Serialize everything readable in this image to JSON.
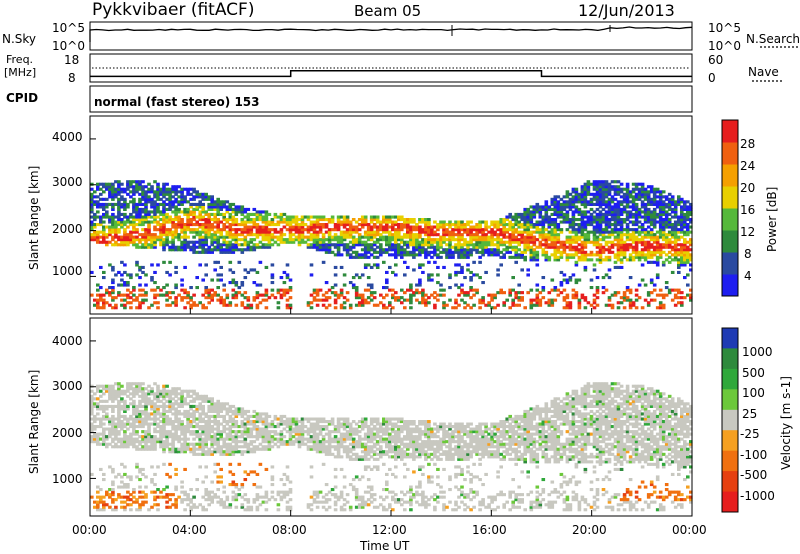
{
  "header": {
    "title": "Pykkvibaer (fitACF)",
    "beam": "Beam 05",
    "date": "12/Jun/2013"
  },
  "noise_panel": {
    "left_label": "N.Sky",
    "right_label": "N.Search",
    "left_ticks": [
      "10^5",
      "10^0"
    ],
    "right_ticks": [
      "10^5",
      "10^0"
    ]
  },
  "freq_panel": {
    "left_label_1": "Freq.",
    "left_label_2": "[MHz]",
    "right_label": "Nave",
    "left_ticks": [
      "18",
      "8"
    ],
    "right_ticks": [
      "60",
      "0"
    ]
  },
  "cpid": {
    "label": "CPID",
    "value": "normal (fast stereo) 153"
  },
  "x_axis": {
    "label": "Time UT",
    "ticks": [
      "00:00",
      "04:00",
      "08:00",
      "12:00",
      "16:00",
      "20:00",
      "00:00"
    ]
  },
  "power_panel": {
    "ylabel": "Slant Range [km]",
    "yticks": [
      "1000",
      "2000",
      "3000",
      "4000"
    ],
    "colorbar_label": "Power [dB]",
    "colorbar_ticks": [
      "4",
      "8",
      "12",
      "16",
      "20",
      "24",
      "28"
    ],
    "colors": [
      "#1e1ef0",
      "#2a4aa0",
      "#2e8a3c",
      "#55b83a",
      "#e8d000",
      "#f5a000",
      "#f06010",
      "#e61e1e"
    ]
  },
  "velocity_panel": {
    "ylabel": "Slant Range [km]",
    "yticks": [
      "1000",
      "2000",
      "3000",
      "4000"
    ],
    "colorbar_label": "Velocity [m s-1]",
    "colorbar_ticks": [
      "1000",
      "500",
      "100",
      "25",
      "-25",
      "-100",
      "-500",
      "-1000"
    ],
    "colors": [
      "#1e3ab4",
      "#2e8a3c",
      "#2fa83a",
      "#6cc83a",
      "#c8c8c0",
      "#f5a020",
      "#f07010",
      "#e64010",
      "#e61e1e"
    ]
  },
  "chart_data": {
    "type": "heatmap",
    "x_unit": "hours UT",
    "x_range": [
      0,
      24
    ],
    "y_range_km": [
      180,
      4500
    ],
    "frequency_mhz": [
      {
        "from_hour": 0,
        "to_hour": 8,
        "value": 10
      },
      {
        "from_hour": 8,
        "to_hour": 18,
        "value": 12
      },
      {
        "from_hour": 18,
        "to_hour": 24,
        "value": 10
      }
    ],
    "power_bands": [
      {
        "t": 0,
        "lower_km": 1700,
        "upper_km": 3000,
        "core_km": 1750
      },
      {
        "t": 2,
        "lower_km": 1600,
        "upper_km": 3100,
        "core_km": 1900
      },
      {
        "t": 4,
        "lower_km": 1500,
        "upper_km": 2900,
        "core_km": 2200
      },
      {
        "t": 6,
        "lower_km": 1500,
        "upper_km": 2500,
        "core_km": 2000
      },
      {
        "t": 8,
        "lower_km": 1700,
        "upper_km": 2300,
        "core_km": 2000
      },
      {
        "t": 10,
        "lower_km": 1400,
        "upper_km": 2300,
        "core_km": 2050
      },
      {
        "t": 12,
        "lower_km": 1350,
        "upper_km": 2300,
        "core_km": 2050
      },
      {
        "t": 14,
        "lower_km": 1350,
        "upper_km": 2200,
        "core_km": 1950
      },
      {
        "t": 16,
        "lower_km": 1400,
        "upper_km": 2200,
        "core_km": 1950
      },
      {
        "t": 18,
        "lower_km": 1300,
        "upper_km": 2600,
        "core_km": 1700
      },
      {
        "t": 20,
        "lower_km": 1300,
        "upper_km": 3100,
        "core_km": 1550
      },
      {
        "t": 22,
        "lower_km": 1300,
        "upper_km": 3000,
        "core_km": 1650
      },
      {
        "t": 24,
        "lower_km": 1200,
        "upper_km": 2600,
        "core_km": 1600
      }
    ],
    "negative_velocity_patches": [
      {
        "t_start": 0.0,
        "t_end": 3.5,
        "range_min_km": 300,
        "range_max_km": 700
      },
      {
        "t_start": 3.0,
        "t_end": 4.0,
        "range_min_km": 1000,
        "range_max_km": 1500
      },
      {
        "t_start": 5.0,
        "t_end": 7.0,
        "range_min_km": 800,
        "range_max_km": 1300
      },
      {
        "t_start": 21.0,
        "t_end": 24.0,
        "range_min_km": 500,
        "range_max_km": 900
      }
    ]
  }
}
